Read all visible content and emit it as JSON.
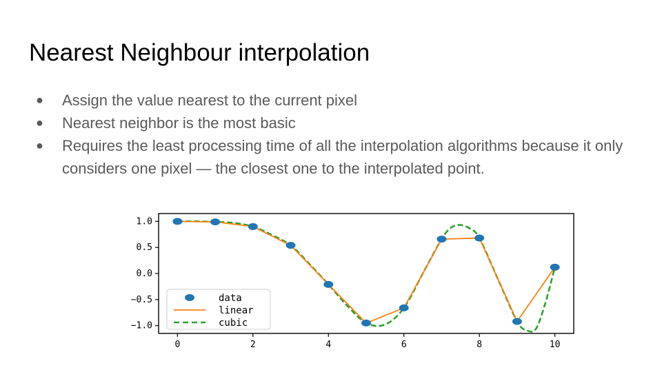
{
  "slide": {
    "title": "Nearest Neighbour interpolation",
    "bullets": [
      "Assign the value nearest to the current pixel",
      "Nearest neighbor is the most basic",
      "Requires the least processing time of all the interpolation algorithms because it only considers one pixel — the closest one to the interpolated point."
    ],
    "bullet_symbol": "●"
  },
  "chart_data": {
    "type": "line",
    "xlim": [
      -0.5,
      10.5
    ],
    "ylim": [
      -1.15,
      1.15
    ],
    "xticks": [
      0,
      2,
      4,
      6,
      8,
      10
    ],
    "xtick_labels": [
      "0",
      "2",
      "4",
      "6",
      "8",
      "10"
    ],
    "yticks": [
      1.0,
      0.5,
      0.0,
      -0.5,
      -1.0
    ],
    "ytick_labels": [
      "1.0",
      "0.5",
      "0.0",
      "−0.5",
      "−1.0"
    ],
    "legend_position": "lower-left",
    "series": [
      {
        "name": "data",
        "style": "markers",
        "color": "#1f77b4",
        "x": [
          0,
          1,
          2,
          3,
          4,
          5,
          6,
          7,
          8,
          9,
          10
        ],
        "y": [
          1.0,
          0.99,
          0.9,
          0.54,
          -0.21,
          -0.95,
          -0.66,
          0.66,
          0.68,
          -0.92,
          0.12
        ]
      },
      {
        "name": "linear",
        "style": "solid",
        "color": "#ff7f0e",
        "x": [
          0,
          1,
          2,
          3,
          4,
          5,
          6,
          7,
          8,
          9,
          10
        ],
        "y": [
          1.0,
          0.99,
          0.9,
          0.54,
          -0.21,
          -0.95,
          -0.66,
          0.66,
          0.68,
          -0.92,
          0.12
        ]
      },
      {
        "name": "cubic",
        "style": "dashed",
        "color": "#2ca02c",
        "x": [
          0,
          0.5,
          1,
          1.5,
          2,
          2.5,
          3,
          3.5,
          4,
          4.5,
          5,
          5.5,
          6,
          6.5,
          7,
          7.25,
          7.5,
          7.75,
          8,
          8.5,
          9,
          9.25,
          9.5,
          9.75,
          10
        ],
        "y": [
          1.0,
          1.0,
          0.99,
          0.97,
          0.9,
          0.74,
          0.54,
          0.18,
          -0.21,
          -0.62,
          -0.95,
          -0.98,
          -0.66,
          0.0,
          0.66,
          0.88,
          0.93,
          0.86,
          0.68,
          -0.12,
          -0.92,
          -1.09,
          -1.06,
          -0.56,
          0.12
        ]
      }
    ]
  }
}
